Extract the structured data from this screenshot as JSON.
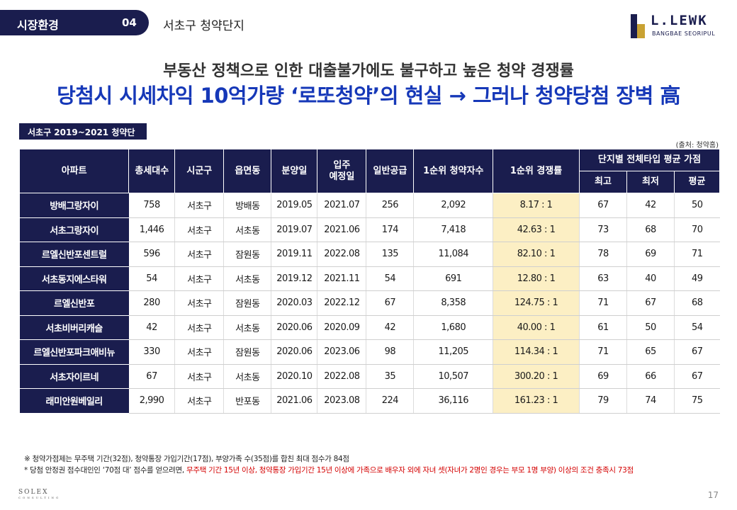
{
  "header": {
    "title": "시장환경",
    "number": "04",
    "subtitle": "서초구 청약단지"
  },
  "logo": {
    "name": "L.LEWK",
    "sub": "BANGBAE SEORIPUL"
  },
  "headline": {
    "line1": "부동산 정책으로 인한 대출불가에도 불구하고 높은 청약 경쟁률",
    "line2": "당첨시 시세차익 10억가량 ‘로또청약’의 현실 → 그러나 청약당첨 장벽 高"
  },
  "section_tag": "서초구 2019~2021 청약단지",
  "source": "(출처: 청약홈)",
  "table": {
    "headers": {
      "apt": "아파트",
      "total": "총세대수",
      "city": "시군구",
      "town": "읍면동",
      "sale": "분양일",
      "move_in_1": "입주",
      "move_in_2": "예정일",
      "supply": "일반공급",
      "applicants": "1순위 청약자수",
      "rate": "1순위 경쟁률",
      "score_group": "단지별 전체타입 평균 가점",
      "max": "최고",
      "min": "최저",
      "avg": "평균"
    },
    "rows": [
      [
        "방배그랑자이",
        "758",
        "서초구",
        "방배동",
        "2019.05",
        "2021.07",
        "256",
        "2,092",
        "8.17 : 1",
        "67",
        "42",
        "50"
      ],
      [
        "서초그랑자이",
        "1,446",
        "서초구",
        "서초동",
        "2019.07",
        "2021.06",
        "174",
        "7,418",
        "42.63 : 1",
        "73",
        "68",
        "70"
      ],
      [
        "르엘신반포센트럴",
        "596",
        "서초구",
        "잠원동",
        "2019.11",
        "2022.08",
        "135",
        "11,084",
        "82.10 : 1",
        "78",
        "69",
        "71"
      ],
      [
        "서초동지에스타워",
        "54",
        "서초구",
        "서초동",
        "2019.12",
        "2021.11",
        "54",
        "691",
        "12.80 : 1",
        "63",
        "40",
        "49"
      ],
      [
        "르엘신반포",
        "280",
        "서초구",
        "잠원동",
        "2020.03",
        "2022.12",
        "67",
        "8,358",
        "124.75 : 1",
        "71",
        "67",
        "68"
      ],
      [
        "서초비버리캐슬",
        "42",
        "서초구",
        "서초동",
        "2020.06",
        "2020.09",
        "42",
        "1,680",
        "40.00 : 1",
        "61",
        "50",
        "54"
      ],
      [
        "르엘신반포파크애비뉴",
        "330",
        "서초구",
        "잠원동",
        "2020.06",
        "2023.06",
        "98",
        "11,205",
        "114.34 : 1",
        "71",
        "65",
        "67"
      ],
      [
        "서초자이르네",
        "67",
        "서초구",
        "서초동",
        "2020.10",
        "2022.08",
        "35",
        "10,507",
        "300.20 : 1",
        "69",
        "66",
        "67"
      ],
      [
        "래미안원베일리",
        "2,990",
        "서초구",
        "반포동",
        "2021.06",
        "2023.08",
        "224",
        "36,116",
        "161.23 : 1",
        "79",
        "74",
        "75"
      ]
    ]
  },
  "notes": {
    "line1": "※ 청약가점제는 무주택 기간(32점), 청약통장 가입기간(17점), 부양가족 수(35점)를 합친 최대 점수가 84점",
    "line2_black": "* 당첨 안정권 점수대인인 ‘70점 대’ 점수를  얻으려면, ",
    "line2_red": "무주택 기간 15년 이상, 청약통장 가입기간 15년 이상에 가족으로 배우자 외에 자녀 셋(자녀가 2명인 경우는 부모 1명 부양) 이상의 조건 충족시 73점"
  },
  "footer": {
    "logo": "SOLEX",
    "logo_sub": "CONSULTING",
    "page": "17"
  },
  "colors": {
    "navy": "#1a1d4e",
    "blue": "#1638b8",
    "highlight": "#fcefc4",
    "red": "#d40000"
  }
}
